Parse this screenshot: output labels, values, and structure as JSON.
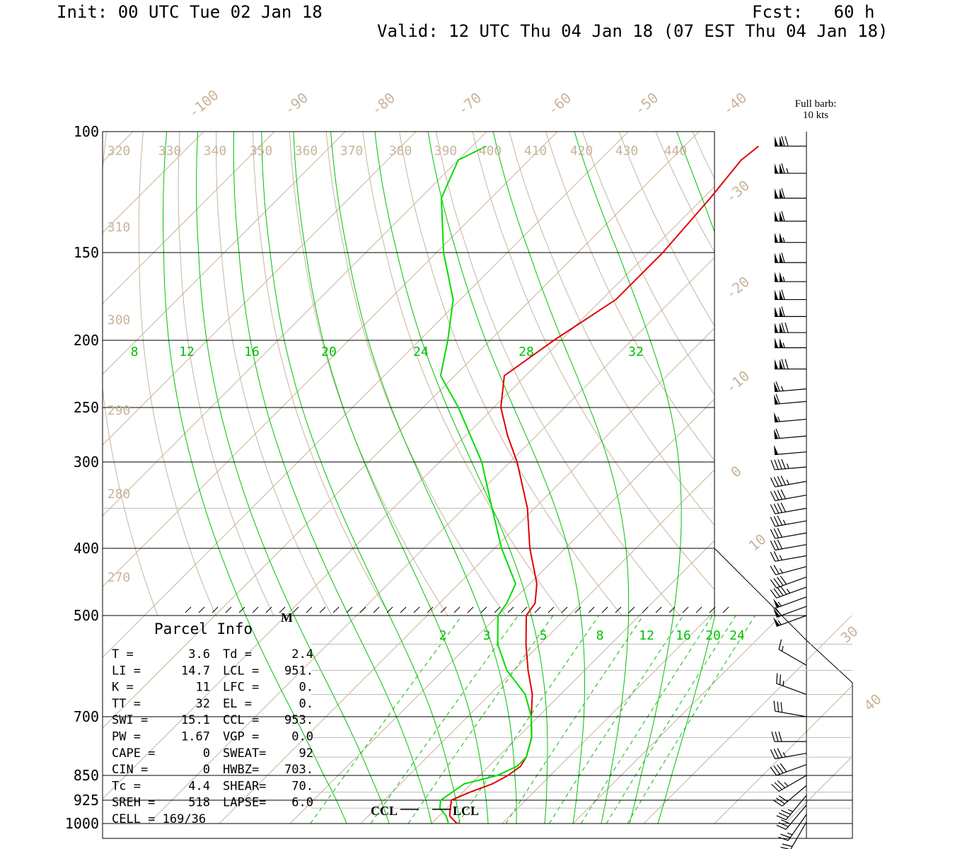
{
  "header": {
    "init": "Init: 00 UTC Tue 02 Jan 18",
    "fcst": "Fcst:   60 h",
    "valid": "Valid: 12 UTC Thu 04 Jan 18 (07 EST Thu 04 Jan 18)"
  },
  "wind_legend": {
    "line1": "Full barb:",
    "line2": "10 kts"
  },
  "parcel_info": {
    "title": "Parcel Info",
    "rows": [
      [
        "T  =",
        "3.6",
        "Td =",
        "2.4"
      ],
      [
        "LI =",
        "14.7",
        "LCL =",
        "951."
      ],
      [
        "K  =",
        "11",
        "LFC =",
        "0."
      ],
      [
        "TT =",
        "32",
        "EL  =",
        "0."
      ],
      [
        "SWI =",
        "15.1",
        "CCL =",
        "953."
      ],
      [
        "PW =",
        "1.67",
        "VGP =",
        "0.0"
      ],
      [
        "CAPE =",
        "0",
        "SWEAT=",
        "92"
      ],
      [
        "CIN =",
        "0",
        "HWBZ=",
        "703."
      ],
      [
        "Tc =",
        "4.4",
        "SHEAR=",
        "70."
      ],
      [
        "SREH =",
        "518",
        "LAPSE=",
        "6.0"
      ],
      [
        "CELL = 169/36",
        "",
        "",
        ""
      ]
    ]
  },
  "markers": {
    "ccl": "CCL",
    "lcl": "LCL",
    "m": "M"
  },
  "colors": {
    "temperature": "#e00000",
    "dewpoint": "#00dd00",
    "reference": "#c8b49a",
    "moist_adiabat": "#00c000",
    "mixing_ratio": "#00c000",
    "wind": "#000000"
  },
  "chart_data": {
    "type": "line",
    "title": "",
    "xlabel": "",
    "ylabel": "",
    "pressure_ticks": [
      100,
      150,
      200,
      250,
      300,
      400,
      500,
      700,
      850,
      925,
      1000
    ],
    "isotherm_labels": [
      -100,
      -90,
      -80,
      -70,
      -60,
      -50,
      -40,
      -30,
      -20,
      -10,
      0,
      10,
      30,
      40
    ],
    "theta_labels": [
      320,
      330,
      340,
      350,
      360,
      370,
      380,
      390,
      400,
      410,
      420,
      430,
      440,
      310,
      300,
      290,
      280,
      270
    ],
    "theta_e_labels": [
      8,
      12,
      16,
      20,
      24,
      28,
      32
    ],
    "mixing_ratio_labels": [
      2,
      3,
      5,
      8,
      12,
      16,
      20,
      24
    ],
    "series": [
      {
        "name": "",
        "role": "temperature",
        "points": [
          {
            "p": 1000,
            "t": 3.6
          },
          {
            "p": 975,
            "t": 1.5
          },
          {
            "p": 950,
            "t": 0.5
          },
          {
            "p": 925,
            "t": -0.5
          },
          {
            "p": 900,
            "t": 1.0
          },
          {
            "p": 875,
            "t": 3.0
          },
          {
            "p": 850,
            "t": 4.0
          },
          {
            "p": 825,
            "t": 4.5
          },
          {
            "p": 800,
            "t": 4.0
          },
          {
            "p": 750,
            "t": 2.0
          },
          {
            "p": 700,
            "t": -1.0
          },
          {
            "p": 650,
            "t": -4.0
          },
          {
            "p": 600,
            "t": -8.0
          },
          {
            "p": 550,
            "t": -12.0
          },
          {
            "p": 500,
            "t": -16.0
          },
          {
            "p": 480,
            "t": -16.5
          },
          {
            "p": 450,
            "t": -19.0
          },
          {
            "p": 400,
            "t": -25.0
          },
          {
            "p": 350,
            "t": -31.0
          },
          {
            "p": 300,
            "t": -39.0
          },
          {
            "p": 275,
            "t": -44.0
          },
          {
            "p": 250,
            "t": -49.0
          },
          {
            "p": 225,
            "t": -53.0
          },
          {
            "p": 200,
            "t": -51.0
          },
          {
            "p": 175,
            "t": -48.0
          },
          {
            "p": 150,
            "t": -48.0
          },
          {
            "p": 125,
            "t": -49.0
          },
          {
            "p": 110,
            "t": -50.0
          },
          {
            "p": 105,
            "t": -49.5
          }
        ]
      },
      {
        "name": "",
        "role": "dewpoint",
        "points": [
          {
            "p": 1000,
            "t": 2.4
          },
          {
            "p": 975,
            "t": 1.0
          },
          {
            "p": 950,
            "t": -1.0
          },
          {
            "p": 925,
            "t": -2.0
          },
          {
            "p": 900,
            "t": -1.5
          },
          {
            "p": 875,
            "t": -1.0
          },
          {
            "p": 850,
            "t": 2.5
          },
          {
            "p": 825,
            "t": 4.0
          },
          {
            "p": 800,
            "t": 4.0
          },
          {
            "p": 750,
            "t": 2.0
          },
          {
            "p": 700,
            "t": -1.0
          },
          {
            "p": 650,
            "t": -5.0
          },
          {
            "p": 600,
            "t": -11.0
          },
          {
            "p": 550,
            "t": -16.0
          },
          {
            "p": 500,
            "t": -20.0
          },
          {
            "p": 480,
            "t": -20.5
          },
          {
            "p": 450,
            "t": -22.0
          },
          {
            "p": 400,
            "t": -29.0
          },
          {
            "p": 350,
            "t": -36.0
          },
          {
            "p": 300,
            "t": -44.0
          },
          {
            "p": 250,
            "t": -55.0
          },
          {
            "p": 225,
            "t": -62.0
          },
          {
            "p": 200,
            "t": -66.0
          },
          {
            "p": 175,
            "t": -71.0
          },
          {
            "p": 150,
            "t": -79.0
          },
          {
            "p": 125,
            "t": -87.0
          },
          {
            "p": 110,
            "t": -90.0
          },
          {
            "p": 105,
            "t": -88.0
          }
        ]
      }
    ],
    "wind": {
      "upper": [
        {
          "p": 105,
          "dir": 270,
          "spd": 120
        },
        {
          "p": 115,
          "dir": 270,
          "spd": 115
        },
        {
          "p": 125,
          "dir": 270,
          "spd": 110
        },
        {
          "p": 135,
          "dir": 270,
          "spd": 110
        },
        {
          "p": 145,
          "dir": 270,
          "spd": 105
        },
        {
          "p": 155,
          "dir": 270,
          "spd": 110
        },
        {
          "p": 165,
          "dir": 270,
          "spd": 105
        },
        {
          "p": 175,
          "dir": 270,
          "spd": 110
        },
        {
          "p": 185,
          "dir": 270,
          "spd": 110
        },
        {
          "p": 195,
          "dir": 270,
          "spd": 120
        },
        {
          "p": 205,
          "dir": 270,
          "spd": 105
        },
        {
          "p": 220,
          "dir": 270,
          "spd": 120
        },
        {
          "p": 235,
          "dir": 265,
          "spd": 65
        },
        {
          "p": 245,
          "dir": 265,
          "spd": 60
        },
        {
          "p": 260,
          "dir": 265,
          "spd": 55
        },
        {
          "p": 275,
          "dir": 265,
          "spd": 60
        },
        {
          "p": 290,
          "dir": 265,
          "spd": 50
        },
        {
          "p": 305,
          "dir": 265,
          "spd": 45
        },
        {
          "p": 320,
          "dir": 260,
          "spd": 45
        },
        {
          "p": 335,
          "dir": 260,
          "spd": 40
        },
        {
          "p": 350,
          "dir": 260,
          "spd": 40
        },
        {
          "p": 365,
          "dir": 260,
          "spd": 35
        },
        {
          "p": 380,
          "dir": 260,
          "spd": 30
        },
        {
          "p": 395,
          "dir": 260,
          "spd": 30
        },
        {
          "p": 410,
          "dir": 260,
          "spd": 25
        },
        {
          "p": 425,
          "dir": 255,
          "spd": 25
        },
        {
          "p": 440,
          "dir": 250,
          "spd": 40
        },
        {
          "p": 455,
          "dir": 250,
          "spd": 45
        },
        {
          "p": 470,
          "dir": 250,
          "spd": 55
        },
        {
          "p": 485,
          "dir": 250,
          "spd": 60
        },
        {
          "p": 500,
          "dir": 250,
          "spd": 55
        }
      ],
      "lower": [
        {
          "p": 590,
          "dir": 300,
          "spd": 15
        },
        {
          "p": 650,
          "dir": 290,
          "spd": 25
        },
        {
          "p": 700,
          "dir": 280,
          "spd": 30
        },
        {
          "p": 760,
          "dir": 270,
          "spd": 30
        },
        {
          "p": 790,
          "dir": 260,
          "spd": 35
        },
        {
          "p": 820,
          "dir": 250,
          "spd": 40
        },
        {
          "p": 850,
          "dir": 240,
          "spd": 35
        },
        {
          "p": 880,
          "dir": 230,
          "spd": 30
        },
        {
          "p": 910,
          "dir": 220,
          "spd": 35
        },
        {
          "p": 940,
          "dir": 220,
          "spd": 30
        },
        {
          "p": 970,
          "dir": 215,
          "spd": 25
        },
        {
          "p": 995,
          "dir": 210,
          "spd": 20
        }
      ]
    }
  }
}
